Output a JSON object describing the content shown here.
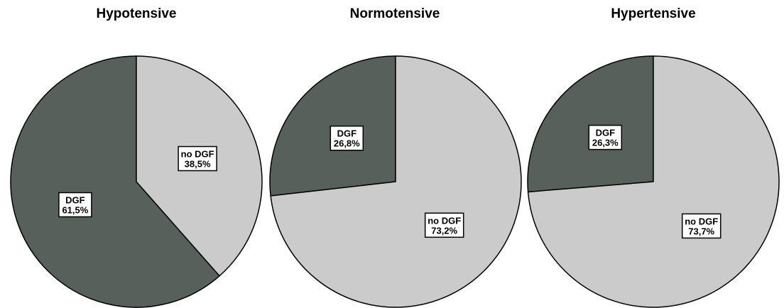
{
  "colors": {
    "DGF": "#58605c",
    "no DGF": "#cbcbcb",
    "outline": "#000000"
  },
  "chart_data": [
    {
      "type": "pie",
      "title": "Hypotensive",
      "slices": [
        {
          "label": "DGF",
          "value": 61.5,
          "label_text": "61,5%"
        },
        {
          "label": "no DGF",
          "value": 38.5,
          "label_text": "38,5%"
        }
      ]
    },
    {
      "type": "pie",
      "title": "Normotensive",
      "slices": [
        {
          "label": "DGF",
          "value": 26.8,
          "label_text": "26,8%"
        },
        {
          "label": "no DGF",
          "value": 73.2,
          "label_text": "73,2%"
        }
      ]
    },
    {
      "type": "pie",
      "title": "Hypertensive",
      "slices": [
        {
          "label": "DGF",
          "value": 26.3,
          "label_text": "26,3%"
        },
        {
          "label": "no DGF",
          "value": 73.7,
          "label_text": "73,7%"
        }
      ]
    }
  ]
}
